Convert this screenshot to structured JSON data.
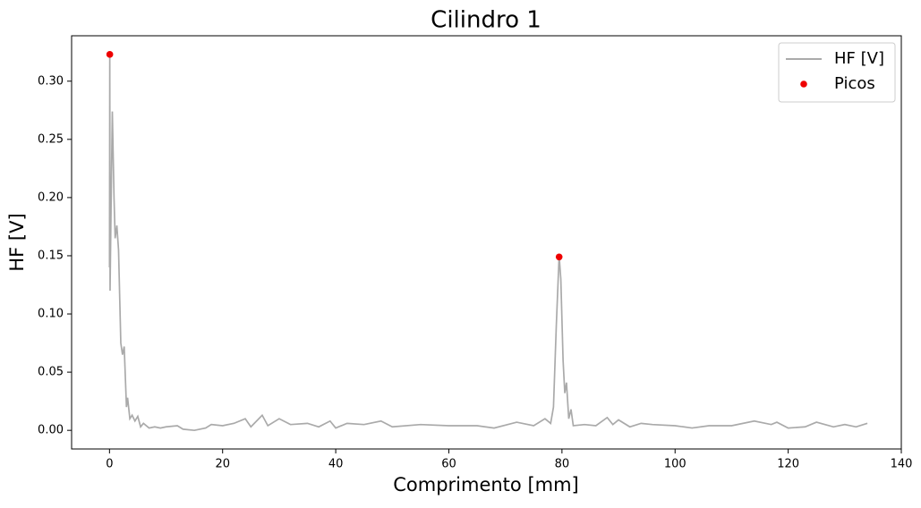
{
  "chart_data": {
    "type": "line",
    "title": "Cilindro 1",
    "xlabel": "Comprimento [mm]",
    "ylabel": "HF [V]",
    "xlim": [
      -6.7,
      140.0
    ],
    "ylim": [
      -0.016,
      0.339
    ],
    "xticks": [
      0,
      20,
      40,
      60,
      80,
      100,
      120,
      140
    ],
    "yticks": [
      {
        "value": 0,
        "label": "0.00"
      },
      {
        "value": 0.05,
        "label": "0.05"
      },
      {
        "value": 0.1,
        "label": "0.10"
      },
      {
        "value": 0.15,
        "label": "0.15"
      },
      {
        "value": 0.2,
        "label": "0.20"
      },
      {
        "value": 0.25,
        "label": "0.25"
      },
      {
        "value": 0.3,
        "label": "0.30"
      }
    ],
    "legend": "upper right",
    "series": [
      {
        "name": "HF [V]",
        "type": "line",
        "color": "#aaaaaa",
        "x": [
          0,
          0.05,
          0.1,
          0.3,
          0.5,
          0.8,
          1.0,
          1.3,
          1.6,
          2.0,
          2.3,
          2.6,
          3.0,
          3.2,
          3.6,
          4.0,
          4.5,
          5.0,
          5.5,
          6,
          7,
          8,
          9,
          10,
          12,
          13,
          15,
          17,
          18,
          20,
          22,
          24,
          25,
          27,
          28,
          30,
          32,
          35,
          37,
          39,
          40,
          42,
          45,
          48,
          50,
          55,
          60,
          65,
          68,
          72,
          75,
          77,
          78,
          78.5,
          79,
          79.5,
          79.8,
          80.2,
          80.5,
          80.8,
          81.2,
          81.6,
          82,
          84,
          86,
          88,
          89,
          90,
          92,
          94,
          96,
          100,
          103,
          106,
          110,
          114,
          117,
          118,
          120,
          123,
          125,
          128,
          130,
          132,
          134
        ],
        "values": [
          0.14,
          0.323,
          0.12,
          0.2,
          0.274,
          0.2,
          0.165,
          0.176,
          0.155,
          0.075,
          0.065,
          0.072,
          0.02,
          0.028,
          0.01,
          0.013,
          0.008,
          0.012,
          0.003,
          0.006,
          0.002,
          0.003,
          0.002,
          0.003,
          0.004,
          0.001,
          0.0,
          0.002,
          0.005,
          0.004,
          0.006,
          0.01,
          0.003,
          0.013,
          0.004,
          0.01,
          0.005,
          0.006,
          0.003,
          0.008,
          0.002,
          0.006,
          0.005,
          0.008,
          0.003,
          0.005,
          0.004,
          0.004,
          0.002,
          0.007,
          0.004,
          0.01,
          0.006,
          0.02,
          0.09,
          0.15,
          0.13,
          0.06,
          0.032,
          0.041,
          0.01,
          0.018,
          0.004,
          0.005,
          0.004,
          0.011,
          0.005,
          0.009,
          0.003,
          0.006,
          0.005,
          0.004,
          0.002,
          0.004,
          0.004,
          0.008,
          0.005,
          0.007,
          0.002,
          0.003,
          0.007,
          0.003,
          0.005,
          0.003,
          0.006
        ]
      },
      {
        "name": "Picos",
        "type": "scatter",
        "color": "#ee0000",
        "x": [
          0.05,
          79.5
        ],
        "values": [
          0.323,
          0.149
        ]
      }
    ]
  }
}
